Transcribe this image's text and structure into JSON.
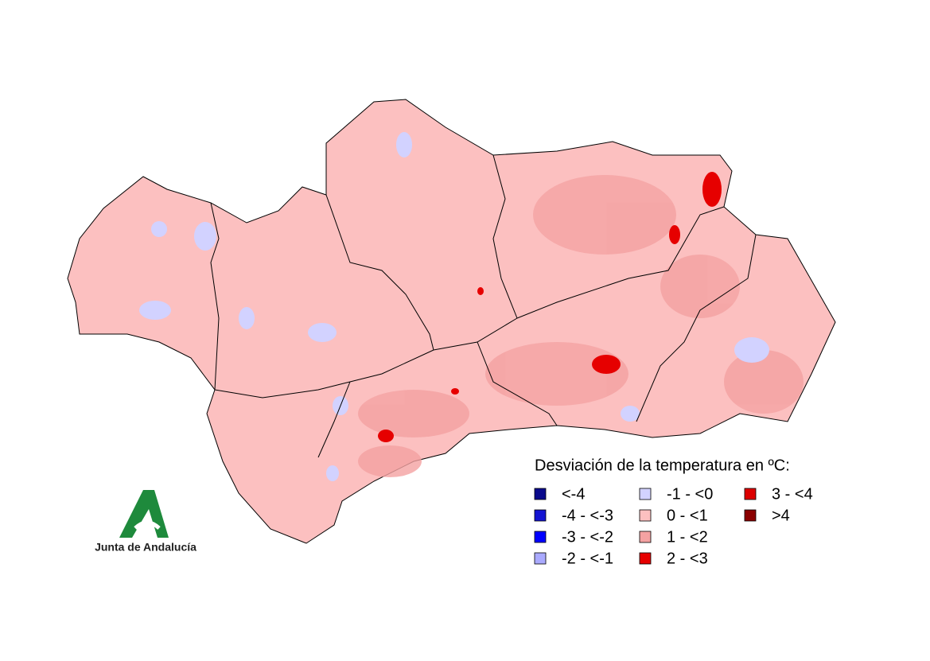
{
  "legend": {
    "title": "Desviación de la temperatura en ºC:",
    "items": [
      {
        "label": "<-4",
        "color": "#0a0a8c"
      },
      {
        "label": "-4 - <-3",
        "color": "#1414d2"
      },
      {
        "label": "-3 - <-2",
        "color": "#0000ff"
      },
      {
        "label": "-2 - <-1",
        "color": "#aaaaff"
      },
      {
        "label": "-1 - <0",
        "color": "#d2d2ff"
      },
      {
        "label": "0 - <1",
        "color": "#fcc0c0"
      },
      {
        "label": "1 - <2",
        "color": "#f4a2a2"
      },
      {
        "label": "2 - <3",
        "color": "#e60000"
      },
      {
        "label": "3 - <4",
        "color": "#dc0000"
      },
      {
        "label": ">4",
        "color": "#8b0000"
      }
    ]
  },
  "logo": {
    "text": "Junta de Andalucía"
  }
}
